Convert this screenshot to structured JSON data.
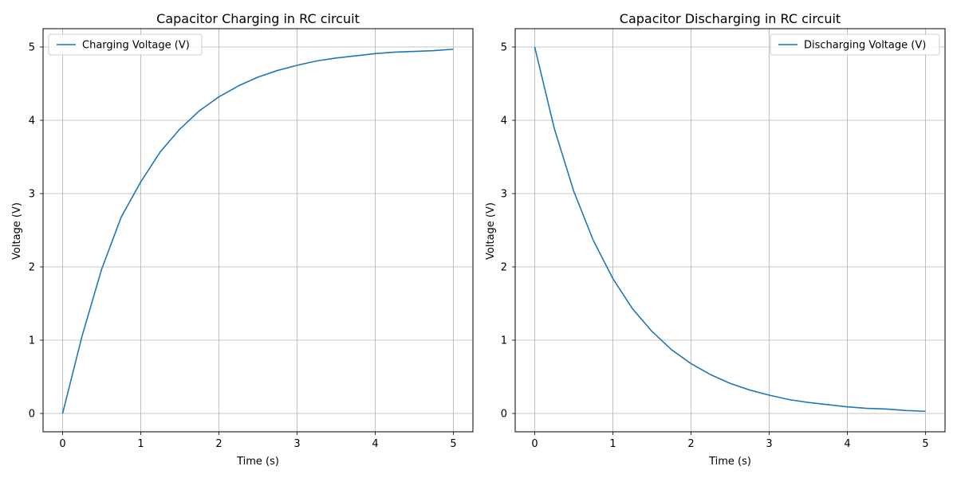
{
  "chart_data": [
    {
      "type": "line",
      "title": "Capacitor Charging in RC circuit",
      "xlabel": "Time (s)",
      "ylabel": "Voltage (V)",
      "xlim": [
        -0.25,
        5.25
      ],
      "ylim": [
        -0.25,
        5.25
      ],
      "xticks": [
        0,
        1,
        2,
        3,
        4,
        5
      ],
      "yticks": [
        0,
        1,
        2,
        3,
        4,
        5
      ],
      "grid": true,
      "legend_position": "upper-left",
      "series": [
        {
          "name": "Charging Voltage (V)",
          "color": "#1f77b4",
          "x": [
            0,
            0.25,
            0.5,
            0.75,
            1,
            1.25,
            1.5,
            1.75,
            2,
            2.25,
            2.5,
            2.75,
            3,
            3.25,
            3.5,
            3.75,
            4,
            4.25,
            4.5,
            4.75,
            5
          ],
          "y": [
            0,
            1.06,
            1.97,
            2.68,
            3.16,
            3.57,
            3.88,
            4.13,
            4.32,
            4.47,
            4.59,
            4.68,
            4.75,
            4.81,
            4.85,
            4.88,
            4.91,
            4.93,
            4.94,
            4.95,
            4.97
          ]
        }
      ]
    },
    {
      "type": "line",
      "title": "Capacitor Discharging in RC circuit",
      "xlabel": "Time (s)",
      "ylabel": "Voltage (V)",
      "xlim": [
        -0.25,
        5.25
      ],
      "ylim": [
        -0.25,
        5.25
      ],
      "xticks": [
        0,
        1,
        2,
        3,
        4,
        5
      ],
      "yticks": [
        0,
        1,
        2,
        3,
        4,
        5
      ],
      "grid": true,
      "legend_position": "upper-right",
      "series": [
        {
          "name": "Discharging Voltage (V)",
          "color": "#1f77b4",
          "x": [
            0,
            0.25,
            0.5,
            0.75,
            1,
            1.25,
            1.5,
            1.75,
            2,
            2.25,
            2.5,
            2.75,
            3,
            3.25,
            3.5,
            3.75,
            4,
            4.25,
            4.5,
            4.75,
            5
          ],
          "y": [
            5,
            3.89,
            3.03,
            2.36,
            1.84,
            1.43,
            1.12,
            0.87,
            0.68,
            0.53,
            0.41,
            0.32,
            0.25,
            0.19,
            0.15,
            0.12,
            0.09,
            0.07,
            0.06,
            0.04,
            0.03
          ]
        }
      ]
    }
  ]
}
